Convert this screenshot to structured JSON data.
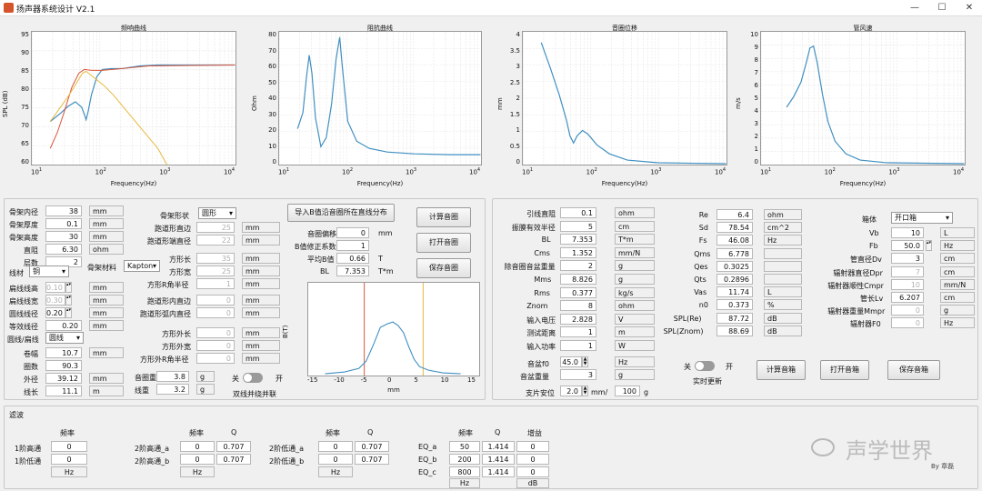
{
  "window": {
    "title": "扬声器系统设计 V2.1",
    "min": "—",
    "max": "☐",
    "close": "✕"
  },
  "plots": {
    "freq": {
      "title": "频响曲线",
      "ylabel": "SPL (dB)",
      "xlabel": "Frequency(Hz)",
      "yticks": [
        "95",
        "90",
        "85",
        "80",
        "75",
        "70",
        "65",
        "60"
      ],
      "xticks": [
        "10",
        "10",
        "10",
        "10"
      ],
      "xexp": [
        "1",
        "2",
        "3",
        "4"
      ]
    },
    "imp": {
      "title": "阻抗曲线",
      "ylabel": "Ohm",
      "xlabel": "Frequency(Hz)",
      "yticks": [
        "80",
        "70",
        "60",
        "50",
        "40",
        "30",
        "20",
        "10",
        "0"
      ],
      "xticks": [
        "10",
        "10",
        "10",
        "10"
      ],
      "xexp": [
        "1",
        "2",
        "3",
        "4"
      ]
    },
    "disp": {
      "title": "音圈位移",
      "ylabel": "mm",
      "xlabel": "Frequency(Hz)",
      "yticks": [
        "4",
        "3.5",
        "3",
        "2.5",
        "2",
        "1.5",
        "1",
        "0.5",
        "0"
      ],
      "xticks": [
        "10",
        "10",
        "10",
        "10"
      ],
      "xexp": [
        "1",
        "2",
        "3",
        "4"
      ]
    },
    "vel": {
      "title": "管风速",
      "ylabel": "m/s",
      "xlabel": "Frequency(Hz)",
      "yticks": [
        "10",
        "9",
        "8",
        "7",
        "6",
        "5",
        "4",
        "3",
        "2",
        "1",
        "0"
      ],
      "xticks": [
        "10",
        "10",
        "10",
        "10"
      ],
      "xexp": [
        "1",
        "2",
        "3",
        "4"
      ]
    },
    "bfield": {
      "ylabel": "B(T)",
      "xlabel": "mm",
      "xticks": [
        "-15",
        "-10",
        "-5",
        "0",
        "5",
        "10",
        "15"
      ]
    }
  },
  "left": {
    "rows": [
      {
        "label": "骨架内径",
        "value": "38",
        "unit": "mm"
      },
      {
        "label": "骨架厚度",
        "value": "0.1",
        "unit": "mm"
      },
      {
        "label": "骨架高度",
        "value": "30",
        "unit": "mm"
      },
      {
        "label": "直阻",
        "value": "6.30",
        "unit": "ohm"
      },
      {
        "label": "层数",
        "value": "2",
        "unit": ""
      }
    ],
    "wire_label": "线材",
    "wire_value": "铜",
    "bobbin_mat_label": "骨架材料",
    "bobbin_mat_value": "Kapton",
    "flat_rows": [
      {
        "label": "扁线线高",
        "value": "0.10",
        "unit": "mm",
        "dis": true
      },
      {
        "label": "扁线线宽",
        "value": "0.30",
        "unit": "mm",
        "dis": true
      },
      {
        "label": "圆线线径",
        "value": "0.20",
        "unit": "mm",
        "dis": false
      },
      {
        "label": "等效线径",
        "value": "0.20",
        "unit": "mm",
        "dis": false
      }
    ],
    "shape2_label": "圆线/扁线",
    "shape2_value": "圆线",
    "calc_rows": [
      {
        "label": "卷幅",
        "value": "10.7",
        "unit": "mm"
      },
      {
        "label": "圈数",
        "value": "90.3",
        "unit": ""
      },
      {
        "label": "外径",
        "value": "39.12",
        "unit": "mm"
      },
      {
        "label": "线长",
        "value": "11.1",
        "unit": "m"
      }
    ],
    "shape_label": "骨架形状",
    "shape_value": "圆形",
    "shape_rows": [
      {
        "label": "跑道形直边",
        "value": "25",
        "unit": "mm"
      },
      {
        "label": "跑道形端直径",
        "value": "22",
        "unit": "mm"
      }
    ],
    "square_rows": [
      {
        "label": "方形长",
        "value": "35",
        "unit": "mm"
      },
      {
        "label": "方形宽",
        "value": "25",
        "unit": "mm"
      },
      {
        "label": "方形R角半径",
        "value": "1",
        "unit": "mm"
      }
    ],
    "track2_rows": [
      {
        "label": "跑道形内直边",
        "value": "0",
        "unit": "mm"
      },
      {
        "label": "跑道形弧内直径",
        "value": "0",
        "unit": "mm"
      }
    ],
    "outer_rows": [
      {
        "label": "方形外长",
        "value": "0",
        "unit": "mm"
      },
      {
        "label": "方形外宽",
        "value": "0",
        "unit": "mm"
      },
      {
        "label": "方形外R角半径",
        "value": "0",
        "unit": "mm"
      }
    ],
    "mass_rows": [
      {
        "label": "音圈重",
        "value": "3.8",
        "unit": "g"
      },
      {
        "label": "线重",
        "value": "3.2",
        "unit": "g"
      }
    ],
    "toggle_off": "关",
    "toggle_on": "开",
    "toggle_caption": "双线并绕并联"
  },
  "mid": {
    "import_btn": "导入B值沿音圈所在直线分布",
    "rows": [
      {
        "label": "音圈偏移",
        "value": "0",
        "unit": "mm"
      },
      {
        "label": "B值修正系数",
        "value": "1",
        "unit": ""
      },
      {
        "label": "平均B值",
        "value": "0.66",
        "unit": "T"
      },
      {
        "label": "BL",
        "value": "7.353",
        "unit": "T*m"
      }
    ],
    "btn_calc": "计算音圈",
    "btn_open": "打开音圈",
    "btn_save": "保存音圈"
  },
  "params": {
    "rows": [
      {
        "label": "引线直阻",
        "value": "0.1",
        "unit": "ohm"
      },
      {
        "label": "振膜有效半径",
        "value": "5",
        "unit": "cm"
      },
      {
        "label": "BL",
        "value": "7.353",
        "unit": "T*m"
      },
      {
        "label": "Cms",
        "value": "1.352",
        "unit": "mm/N"
      },
      {
        "label": "除音圈音盆重量",
        "value": "2",
        "unit": "g"
      },
      {
        "label": "Mms",
        "value": "8.826",
        "unit": "g"
      },
      {
        "label": "Rms",
        "value": "0.377",
        "unit": "kg/s"
      },
      {
        "label": "Znom",
        "value": "8",
        "unit": "ohm"
      },
      {
        "label": "输入电压",
        "value": "2.828",
        "unit": "V"
      },
      {
        "label": "测试距离",
        "value": "1",
        "unit": "m"
      },
      {
        "label": "输入功率",
        "value": "1",
        "unit": "W"
      }
    ],
    "f0_label": "音盆f0",
    "f0_value": "45.0",
    "f0_unit": "Hz",
    "weight_label": "音盆重量",
    "weight_value": "3",
    "weight_unit": "g",
    "susp_label": "支片安位",
    "susp_value": "2.0",
    "susp_sep": "mm/",
    "susp_value2": "100",
    "susp_unit": "g",
    "ts_rows": [
      {
        "label": "Re",
        "value": "6.4",
        "unit": "ohm"
      },
      {
        "label": "Sd",
        "value": "78.54",
        "unit": "cm^2"
      },
      {
        "label": "Fs",
        "value": "46.08",
        "unit": "Hz"
      },
      {
        "label": "Qms",
        "value": "6.778",
        "unit": ""
      },
      {
        "label": "Qes",
        "value": "0.3025",
        "unit": ""
      },
      {
        "label": "Qts",
        "value": "0.2896",
        "unit": ""
      },
      {
        "label": "Vas",
        "value": "11.74",
        "unit": "L"
      },
      {
        "label": "n0",
        "value": "0.373",
        "unit": "%"
      },
      {
        "label": "SPL(Re)",
        "value": "87.72",
        "unit": "dB"
      },
      {
        "label": "SPL(Znom)",
        "value": "88.69",
        "unit": "dB"
      }
    ],
    "rt_off": "关",
    "rt_on": "开",
    "rt_caption": "实时更新"
  },
  "box": {
    "type_label": "箱体",
    "type_value": "开口箱",
    "rows": [
      {
        "label": "Vb",
        "value": "10",
        "unit": "L",
        "dis": false
      },
      {
        "label": "Fb",
        "value": "50.0",
        "unit": "Hz",
        "dis": false
      },
      {
        "label": "管直径Dv",
        "value": "3",
        "unit": "cm",
        "dis": false
      },
      {
        "label": "辐射器直径Dpr",
        "value": "7",
        "unit": "cm",
        "dis": true
      },
      {
        "label": "辐射器顺性Cmpr",
        "value": "10",
        "unit": "mm/N",
        "dis": true
      },
      {
        "label": "管长Lv",
        "value": "6.207",
        "unit": "cm",
        "dis": false
      },
      {
        "label": "辐射器重量Mmpr",
        "value": "0",
        "unit": "g",
        "dis": true
      },
      {
        "label": "辐射器F0",
        "value": "0",
        "unit": "Hz",
        "dis": true
      }
    ],
    "btn_calc": "计算音箱",
    "btn_open": "打开音箱",
    "btn_save": "保存音箱"
  },
  "filter": {
    "title": "滤波",
    "freq_hdr": "频率",
    "q_hdr": "Q",
    "gain_hdr": "增益",
    "hp1_label": "1阶高通",
    "hp1_value": "0",
    "lp1_label": "1阶低通",
    "lp1_value": "0",
    "hz": "Hz",
    "db": "dB",
    "hp2a_label": "2阶高通_a",
    "hp2a_f": "0",
    "hp2a_q": "0.707",
    "hp2b_label": "2阶高通_b",
    "hp2b_f": "0",
    "hp2b_q": "0.707",
    "lp2a_label": "2阶低通_a",
    "lp2a_f": "0",
    "lp2a_q": "0.707",
    "lp2b_label": "2阶低通_b",
    "lp2b_f": "0",
    "lp2b_q": "0.707",
    "eq": [
      {
        "label": "EQ_a",
        "f": "50",
        "q": "1.414",
        "g": "0"
      },
      {
        "label": "EQ_b",
        "f": "200",
        "q": "1.414",
        "g": "0"
      },
      {
        "label": "EQ_c",
        "f": "800",
        "q": "1.414",
        "g": "0"
      }
    ]
  },
  "watermark": {
    "text": "声学世界",
    "by": "By 章磊"
  },
  "colors": {
    "blue": "#3f8fc0",
    "red": "#d9533a",
    "yellow": "#e7b83a"
  }
}
